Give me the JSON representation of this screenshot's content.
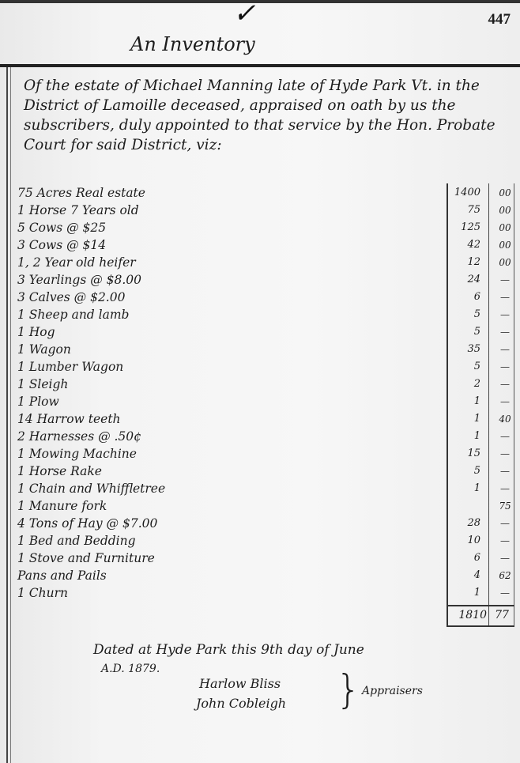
{
  "page": {
    "page_number": "447",
    "check_mark": "✓",
    "title": "An Inventory"
  },
  "preamble": "Of the estate of Michael Manning late of Hyde Park Vt. in the District of Lamoille deceased, appraised on oath by us the subscribers, duly appointed to that service by the Hon. Probate Court for said District, viz:",
  "items": [
    {
      "item": "75 Acres Real estate",
      "dollars": "1400",
      "cents": "00"
    },
    {
      "item": "1 Horse 7 Years old",
      "dollars": "75",
      "cents": "00"
    },
    {
      "item": "5 Cows      @ $25",
      "dollars": "125",
      "cents": "00"
    },
    {
      "item": "3 Cows      @ $14",
      "dollars": "42",
      "cents": "00"
    },
    {
      "item": "1, 2 Year old heifer",
      "dollars": "12",
      "cents": "00"
    },
    {
      "item": "3 Yearlings @ $8.00",
      "dollars": "24",
      "cents": "—"
    },
    {
      "item": "3 Calves    @ $2.00",
      "dollars": "6",
      "cents": "—"
    },
    {
      "item": "1 Sheep and lamb",
      "dollars": "5",
      "cents": "—"
    },
    {
      "item": "1 Hog",
      "dollars": "5",
      "cents": "—"
    },
    {
      "item": "1 Wagon",
      "dollars": "35",
      "cents": "—"
    },
    {
      "item": "1 Lumber Wagon",
      "dollars": "5",
      "cents": "—"
    },
    {
      "item": "1 Sleigh",
      "dollars": "2",
      "cents": "—"
    },
    {
      "item": "1 Plow",
      "dollars": "1",
      "cents": "—"
    },
    {
      "item": "14 Harrow teeth",
      "dollars": "1",
      "cents": "40"
    },
    {
      "item": "2 Harnesses @ .50¢",
      "dollars": "1",
      "cents": "—"
    },
    {
      "item": "1 Mowing Machine",
      "dollars": "15",
      "cents": "—"
    },
    {
      "item": "1 Horse Rake",
      "dollars": "5",
      "cents": "—"
    },
    {
      "item": "1 Chain and Whiffletree",
      "dollars": "1",
      "cents": "—"
    },
    {
      "item": "1 Manure fork",
      "dollars": "",
      "cents": "75"
    },
    {
      "item": "4 Tons of Hay @ $7.00",
      "dollars": "28",
      "cents": "—"
    },
    {
      "item": "1 Bed and Bedding",
      "dollars": "10",
      "cents": "—"
    },
    {
      "item": "1 Stove and Furniture",
      "dollars": "6",
      "cents": "—"
    },
    {
      "item": "Pans and Pails",
      "dollars": "4",
      "cents": "62"
    },
    {
      "item": "1 Churn",
      "dollars": "1",
      "cents": "—"
    }
  ],
  "total": {
    "dollars": "1810",
    "cents": "77"
  },
  "closing": {
    "dated": "Dated at Hyde Park this 9th day of June",
    "year": "A.D. 1879.",
    "signatures": [
      "Harlow Bliss",
      "John Cobleigh"
    ],
    "role": "Appraisers"
  }
}
